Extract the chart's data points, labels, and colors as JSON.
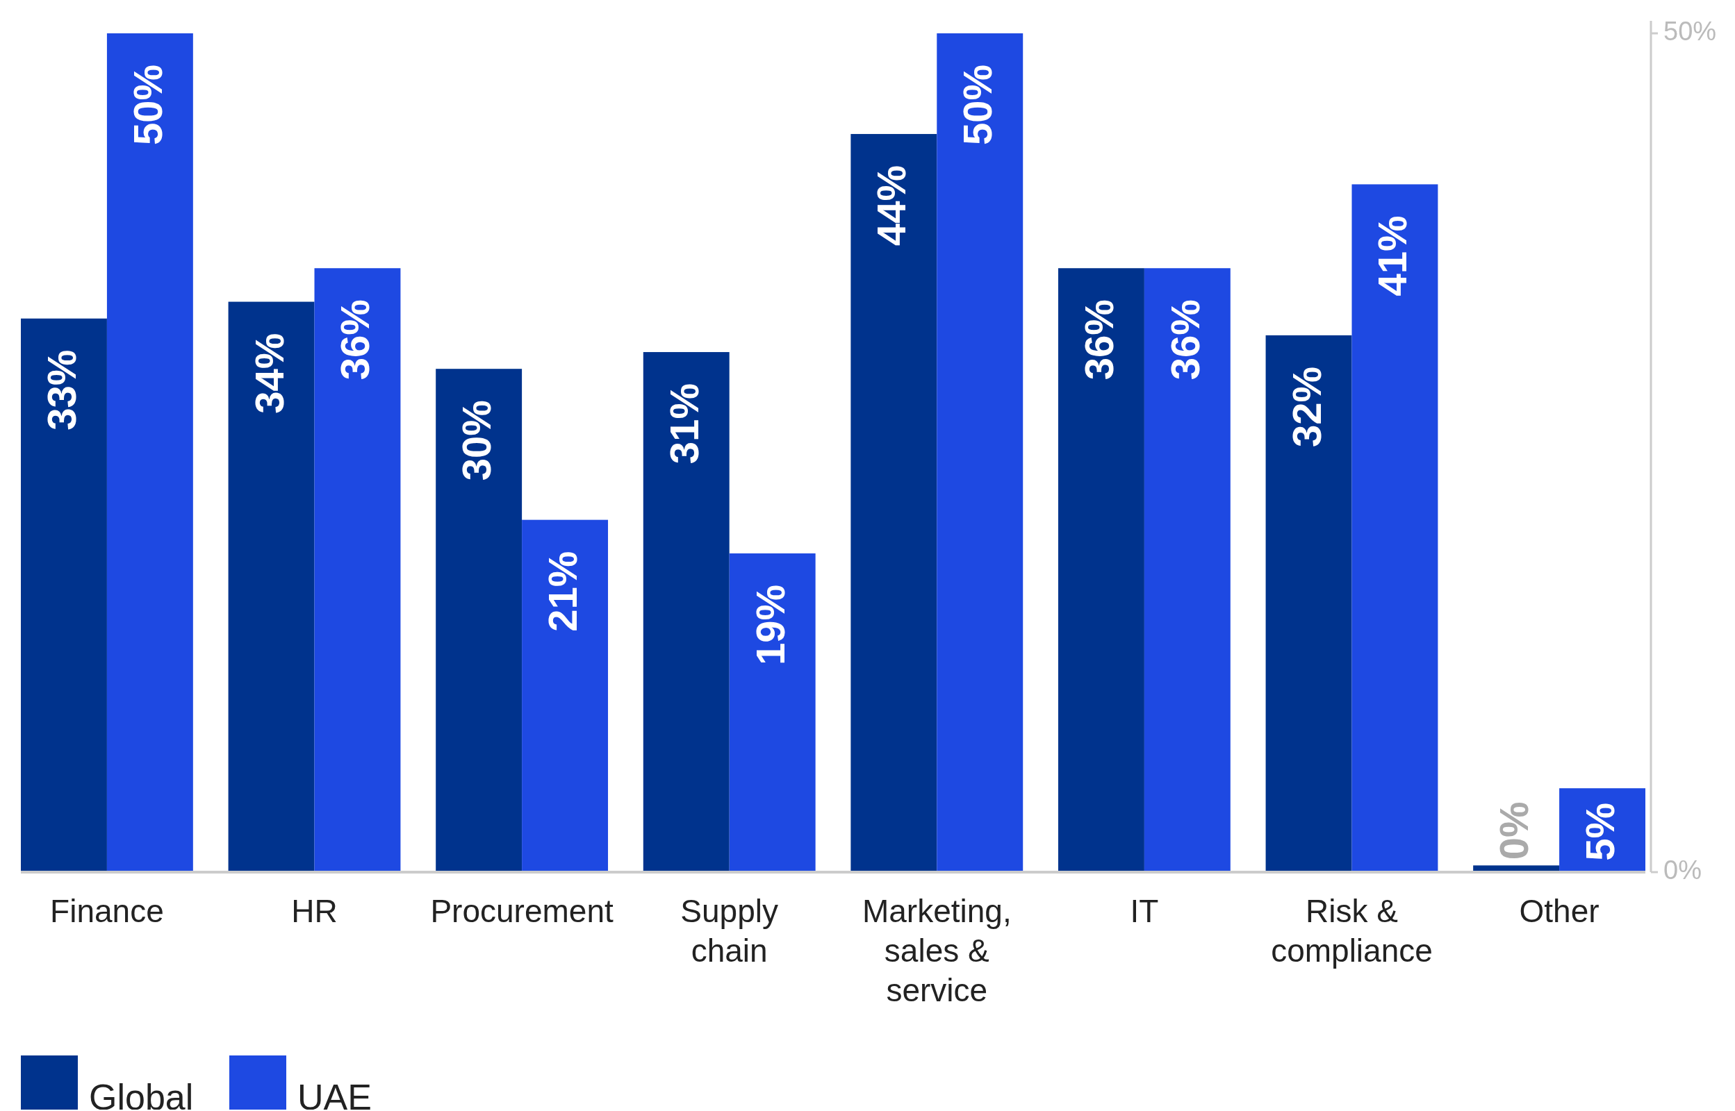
{
  "chart_data": {
    "type": "bar",
    "categories": [
      "Finance",
      "HR",
      "Procurement",
      "Supply chain",
      "Marketing, sales & service",
      "IT",
      "Risk & compliance",
      "Other"
    ],
    "series": [
      {
        "name": "Global",
        "color": "#00338d",
        "values": [
          33,
          34,
          30,
          31,
          44,
          36,
          32,
          0.4
        ],
        "value_labels": [
          "33%",
          "34%",
          "30%",
          "31%",
          "44%",
          "36%",
          "32%",
          "0%"
        ]
      },
      {
        "name": "UAE",
        "color": "#1e49e2",
        "values": [
          50,
          36,
          21,
          19,
          50,
          36,
          41,
          5
        ],
        "value_labels": [
          "50%",
          "36%",
          "21%",
          "19%",
          "50%",
          "36%",
          "41%",
          "5%"
        ]
      }
    ],
    "ylim": [
      0,
      50
    ],
    "yticks": [
      {
        "value": 0,
        "label": "0%"
      },
      {
        "value": 50,
        "label": "50%"
      }
    ],
    "legend": "bottom left"
  }
}
